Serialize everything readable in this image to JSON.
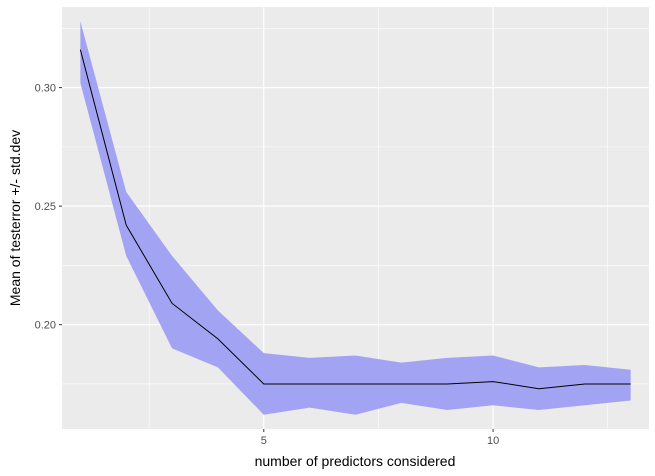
{
  "chart_data": {
    "type": "line",
    "title": "",
    "xlabel": "number of predictors considered",
    "ylabel": "Mean of testerror +/- std.dev",
    "x": [
      1,
      2,
      3,
      4,
      5,
      6,
      7,
      8,
      9,
      10,
      11,
      12,
      13
    ],
    "series": [
      {
        "values": [
          0.316,
          0.242,
          0.209,
          0.194,
          0.175,
          0.175,
          0.175,
          0.175,
          0.175,
          0.176,
          0.173,
          0.175,
          0.175
        ],
        "lower": [
          0.302,
          0.229,
          0.19,
          0.182,
          0.162,
          0.165,
          0.162,
          0.167,
          0.164,
          0.166,
          0.164,
          0.166,
          0.168
        ],
        "upper": [
          0.328,
          0.256,
          0.229,
          0.206,
          0.188,
          0.186,
          0.187,
          0.184,
          0.186,
          0.187,
          0.182,
          0.183,
          0.181
        ]
      }
    ],
    "xlim": [
      0.6,
      13.4
    ],
    "ylim": [
      0.156,
      0.334
    ],
    "xticks": [
      5,
      10
    ],
    "xtick_labels": [
      "5",
      "10"
    ],
    "yticks": [
      0.2,
      0.25,
      0.3
    ],
    "ytick_labels": [
      "0.20",
      "0.25",
      "0.30"
    ],
    "grid": true,
    "colors": {
      "panel": "#ebebeb",
      "grid": "#ffffff",
      "ribbon": "#a3a3f3",
      "line": "#000000"
    }
  }
}
